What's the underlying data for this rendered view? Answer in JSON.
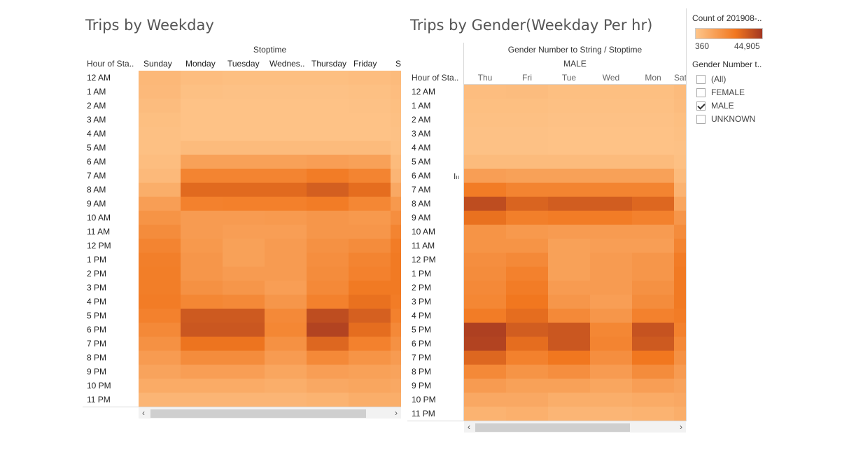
{
  "colors": {
    "low": "#fec58a",
    "mid": "#f1771f",
    "high": "#a23621"
  },
  "left_title": "Trips by Weekday",
  "right_title": "Trips by Gender(Weekday Per hr)",
  "legend": {
    "title": "Count of 201908-..",
    "min_label": "360",
    "max_label": "44,905"
  },
  "filter": {
    "title": "Gender Number t..",
    "items": [
      {
        "label": "(All)",
        "checked": false
      },
      {
        "label": "FEMALE",
        "checked": false
      },
      {
        "label": "MALE",
        "checked": true
      },
      {
        "label": "UNKNOWN",
        "checked": false
      }
    ]
  },
  "chart_data": [
    {
      "type": "heatmap",
      "title": "Trips by Weekday",
      "column_field": "Stoptime",
      "row_field": "Hour of Sta..",
      "columns": [
        "Sunday",
        "Monday",
        "Tuesday",
        "Wednes..",
        "Thursday",
        "Friday",
        "Sa"
      ],
      "rows": [
        "12 AM",
        "1 AM",
        "2 AM",
        "3 AM",
        "4 AM",
        "5 AM",
        "6 AM",
        "7 AM",
        "8 AM",
        "9 AM",
        "10 AM",
        "11 AM",
        "12 PM",
        "1 PM",
        "2 PM",
        "3 PM",
        "4 PM",
        "5 PM",
        "6 PM",
        "7 PM",
        "8 PM",
        "9 PM",
        "10 PM",
        "11 PM"
      ],
      "values": [
        [
          0.1,
          0.06,
          0.05,
          0.05,
          0.05,
          0.06,
          0.08
        ],
        [
          0.09,
          0.04,
          0.03,
          0.03,
          0.03,
          0.04,
          0.06
        ],
        [
          0.07,
          0.02,
          0.02,
          0.02,
          0.02,
          0.03,
          0.05
        ],
        [
          0.05,
          0.02,
          0.02,
          0.02,
          0.02,
          0.02,
          0.04
        ],
        [
          0.04,
          0.02,
          0.02,
          0.02,
          0.02,
          0.02,
          0.03
        ],
        [
          0.04,
          0.08,
          0.08,
          0.08,
          0.08,
          0.08,
          0.04
        ],
        [
          0.06,
          0.28,
          0.28,
          0.28,
          0.3,
          0.28,
          0.08
        ],
        [
          0.09,
          0.5,
          0.5,
          0.5,
          0.56,
          0.5,
          0.12
        ],
        [
          0.18,
          0.68,
          0.68,
          0.68,
          0.75,
          0.66,
          0.22
        ],
        [
          0.3,
          0.52,
          0.53,
          0.53,
          0.56,
          0.48,
          0.34
        ],
        [
          0.38,
          0.32,
          0.32,
          0.33,
          0.36,
          0.34,
          0.42
        ],
        [
          0.44,
          0.32,
          0.3,
          0.3,
          0.36,
          0.36,
          0.5
        ],
        [
          0.5,
          0.34,
          0.28,
          0.32,
          0.4,
          0.44,
          0.56
        ],
        [
          0.54,
          0.36,
          0.28,
          0.32,
          0.42,
          0.5,
          0.58
        ],
        [
          0.55,
          0.36,
          0.32,
          0.32,
          0.44,
          0.52,
          0.58
        ],
        [
          0.55,
          0.4,
          0.36,
          0.3,
          0.46,
          0.58,
          0.58
        ],
        [
          0.56,
          0.48,
          0.46,
          0.36,
          0.52,
          0.64,
          0.56
        ],
        [
          0.52,
          0.78,
          0.78,
          0.46,
          0.86,
          0.74,
          0.52
        ],
        [
          0.46,
          0.8,
          0.8,
          0.48,
          0.92,
          0.66,
          0.46
        ],
        [
          0.4,
          0.62,
          0.62,
          0.4,
          0.7,
          0.52,
          0.4
        ],
        [
          0.32,
          0.44,
          0.44,
          0.32,
          0.46,
          0.38,
          0.32
        ],
        [
          0.26,
          0.3,
          0.3,
          0.24,
          0.3,
          0.28,
          0.26
        ],
        [
          0.2,
          0.2,
          0.2,
          0.18,
          0.22,
          0.24,
          0.22
        ],
        [
          0.12,
          0.12,
          0.12,
          0.12,
          0.14,
          0.18,
          0.18
        ]
      ]
    },
    {
      "type": "heatmap",
      "title": "Trips by Gender(Weekday Per hr)",
      "column_field": "Gender Number to String / Stoptime",
      "group_label": "MALE",
      "row_field": "Hour of Sta..",
      "columns": [
        "Thu",
        "Fri",
        "Tue",
        "Wed",
        "Mon",
        "Sat"
      ],
      "rows": [
        "12 AM",
        "1 AM",
        "2 AM",
        "3 AM",
        "4 AM",
        "5 AM",
        "6 AM",
        "7 AM",
        "8 AM",
        "9 AM",
        "10 AM",
        "11 AM",
        "12 PM",
        "1 PM",
        "2 PM",
        "3 PM",
        "4 PM",
        "5 PM",
        "6 PM",
        "7 PM",
        "8 PM",
        "9 PM",
        "10 PM",
        "11 PM"
      ],
      "values": [
        [
          0.06,
          0.07,
          0.05,
          0.05,
          0.05,
          0.08
        ],
        [
          0.05,
          0.05,
          0.04,
          0.04,
          0.04,
          0.07
        ],
        [
          0.04,
          0.04,
          0.03,
          0.03,
          0.03,
          0.05
        ],
        [
          0.03,
          0.03,
          0.02,
          0.02,
          0.02,
          0.04
        ],
        [
          0.03,
          0.03,
          0.02,
          0.02,
          0.02,
          0.03
        ],
        [
          0.08,
          0.08,
          0.08,
          0.08,
          0.08,
          0.04
        ],
        [
          0.3,
          0.28,
          0.28,
          0.28,
          0.28,
          0.08
        ],
        [
          0.56,
          0.5,
          0.5,
          0.5,
          0.5,
          0.14
        ],
        [
          0.86,
          0.72,
          0.76,
          0.76,
          0.7,
          0.24
        ],
        [
          0.64,
          0.54,
          0.56,
          0.56,
          0.52,
          0.36
        ],
        [
          0.38,
          0.34,
          0.32,
          0.32,
          0.32,
          0.44
        ],
        [
          0.38,
          0.38,
          0.28,
          0.3,
          0.3,
          0.5
        ],
        [
          0.42,
          0.46,
          0.28,
          0.32,
          0.36,
          0.56
        ],
        [
          0.44,
          0.52,
          0.28,
          0.32,
          0.36,
          0.58
        ],
        [
          0.46,
          0.56,
          0.32,
          0.32,
          0.4,
          0.58
        ],
        [
          0.48,
          0.6,
          0.36,
          0.3,
          0.44,
          0.58
        ],
        [
          0.56,
          0.66,
          0.46,
          0.36,
          0.52,
          0.56
        ],
        [
          0.94,
          0.76,
          0.8,
          0.48,
          0.82,
          0.52
        ],
        [
          0.92,
          0.66,
          0.8,
          0.5,
          0.78,
          0.46
        ],
        [
          0.7,
          0.52,
          0.6,
          0.42,
          0.6,
          0.4
        ],
        [
          0.46,
          0.38,
          0.42,
          0.32,
          0.44,
          0.32
        ],
        [
          0.32,
          0.28,
          0.28,
          0.24,
          0.3,
          0.26
        ],
        [
          0.22,
          0.22,
          0.18,
          0.18,
          0.2,
          0.22
        ],
        [
          0.14,
          0.16,
          0.12,
          0.12,
          0.14,
          0.18
        ]
      ]
    }
  ]
}
